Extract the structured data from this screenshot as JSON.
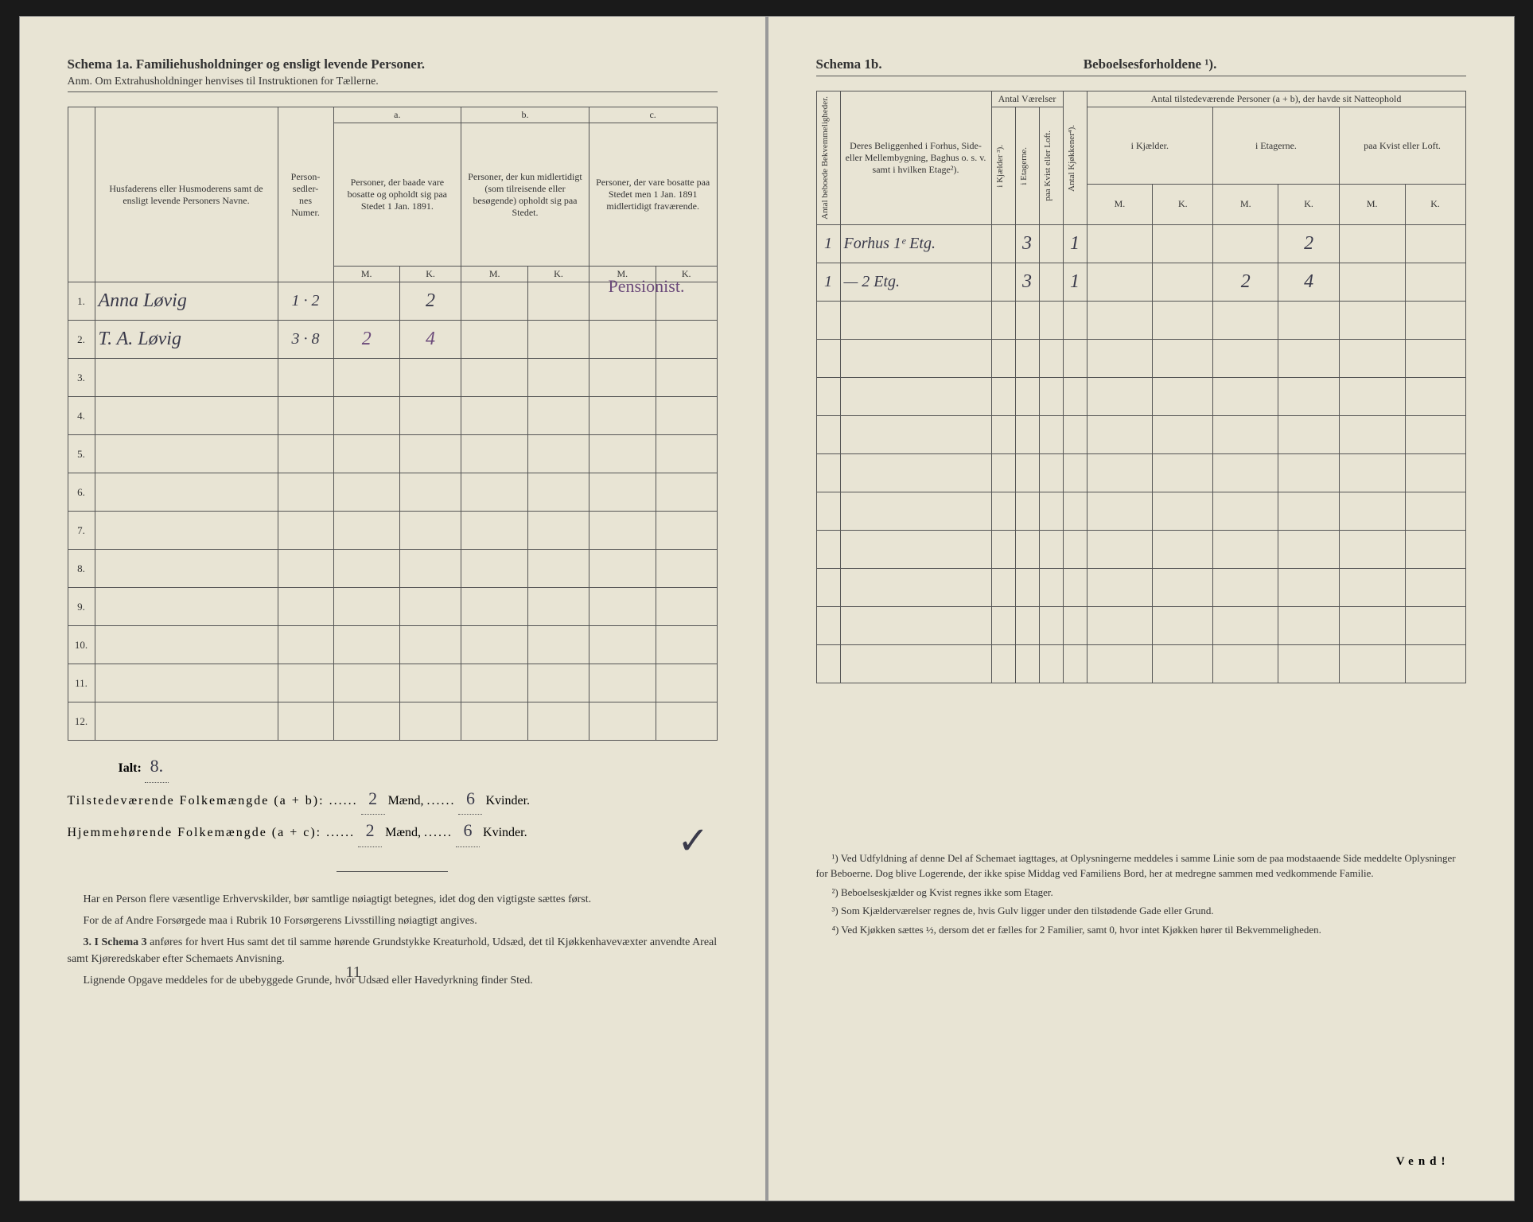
{
  "left": {
    "title": "Schema 1a.  Familiehusholdninger og ensligt levende Personer.",
    "subtitle": "Anm. Om Extrahusholdninger henvises til Instruktionen for Tællerne.",
    "headers": {
      "name": "Husfaderens eller Husmoderens samt de ensligt levende Personers Navne.",
      "personsedler": "Person-\nsedler-\nnes\nNumer.",
      "a_label": "a.",
      "a_text": "Personer, der baade vare bosatte og opholdt sig paa Stedet 1 Jan. 1891.",
      "b_label": "b.",
      "b_text": "Personer, der kun midlertidigt (som tilreisende eller besøgende) opholdt sig paa Stedet.",
      "c_label": "c.",
      "c_text": "Personer, der vare bosatte paa Stedet men 1 Jan. 1891 midlertidigt fraværende.",
      "m": "M.",
      "k": "K."
    },
    "rows": [
      {
        "n": "1.",
        "name": "Anna Løvig",
        "sedler": "1 · 2",
        "aM": "",
        "aK": "2",
        "bM": "",
        "bK": "",
        "cM": "",
        "cK": "",
        "note": "Pensionist."
      },
      {
        "n": "2.",
        "name": "T. A. Løvig",
        "sedler": "3 · 8",
        "aM": "2",
        "aK": "4",
        "bM": "",
        "bK": "",
        "cM": "",
        "cK": "",
        "note": ""
      },
      {
        "n": "3.",
        "name": "",
        "sedler": "",
        "aM": "",
        "aK": "",
        "bM": "",
        "bK": "",
        "cM": "",
        "cK": "",
        "note": ""
      },
      {
        "n": "4.",
        "name": "",
        "sedler": "",
        "aM": "",
        "aK": "",
        "bM": "",
        "bK": "",
        "cM": "",
        "cK": "",
        "note": ""
      },
      {
        "n": "5.",
        "name": "",
        "sedler": "",
        "aM": "",
        "aK": "",
        "bM": "",
        "bK": "",
        "cM": "",
        "cK": "",
        "note": ""
      },
      {
        "n": "6.",
        "name": "",
        "sedler": "",
        "aM": "",
        "aK": "",
        "bM": "",
        "bK": "",
        "cM": "",
        "cK": "",
        "note": ""
      },
      {
        "n": "7.",
        "name": "",
        "sedler": "",
        "aM": "",
        "aK": "",
        "bM": "",
        "bK": "",
        "cM": "",
        "cK": "",
        "note": ""
      },
      {
        "n": "8.",
        "name": "",
        "sedler": "",
        "aM": "",
        "aK": "",
        "bM": "",
        "bK": "",
        "cM": "",
        "cK": "",
        "note": ""
      },
      {
        "n": "9.",
        "name": "",
        "sedler": "",
        "aM": "",
        "aK": "",
        "bM": "",
        "bK": "",
        "cM": "",
        "cK": "",
        "note": ""
      },
      {
        "n": "10.",
        "name": "",
        "sedler": "",
        "aM": "",
        "aK": "",
        "bM": "",
        "bK": "",
        "cM": "",
        "cK": "",
        "note": ""
      },
      {
        "n": "11.",
        "name": "",
        "sedler": "",
        "aM": "",
        "aK": "",
        "bM": "",
        "bK": "",
        "cM": "",
        "cK": "",
        "note": ""
      },
      {
        "n": "12.",
        "name": "",
        "sedler": "",
        "aM": "",
        "aK": "",
        "bM": "",
        "bK": "",
        "cM": "",
        "cK": "",
        "note": ""
      }
    ],
    "summary": {
      "ialt_label": "Ialt:",
      "ialt_val": "8.",
      "line1_a": "Tilstedeværende Folkemængde (a + b): ",
      "line1_m": "2",
      "line1_mid": " Mænd, ",
      "line1_k": "6",
      "line1_end": " Kvinder.",
      "line2_a": "Hjemmehørende Folkemængde (a + c): ",
      "line2_m": "2",
      "line2_mid": " Mænd, ",
      "line2_k": "6",
      "line2_end": " Kvinder."
    },
    "body": {
      "p1": "Har en Person flere væsentlige Erhvervskilder, bør samtlige nøiagtigt betegnes, idet dog den vigtigste sættes først.",
      "p2": "For de af Andre Forsørgede maa i Rubrik 10 Forsørgerens Livsstilling nøiagtigt angives.",
      "p3_lead": "3. I Schema 3",
      "p3": " anføres for hvert Hus samt det til samme hørende Grundstykke Kreaturhold, Udsæd, det til Kjøkkenhavevæxter anvendte Areal samt Kjøreredskaber efter Schemaets Anvisning.",
      "p4": "Lignende Opgave meddeles for de ubebyggede Grunde, hvor Udsæd eller Havedyrkning finder Sted."
    },
    "annotation_11": "11"
  },
  "right": {
    "title_a": "Schema 1b.",
    "title_b": "Beboelsesforholdene ¹).",
    "headers": {
      "antal_bekv": "Antal beboede Bekvemmeligheder.",
      "beliggenhed": "Deres Beliggenhed i Forhus, Side- eller Mellembygning, Baghus o. s. v. samt i hvilken Etage²).",
      "antal_vaer": "Antal Værelser",
      "kjaelder": "i Kjælder ³).",
      "etagerne": "i Etagerne.",
      "kvist": "paa Kvist eller Loft.",
      "kjokken": "Antal Kjøkkener⁴).",
      "antal_pers": "Antal tilstedeværende Personer (a + b), der havde sit Natteophold",
      "ikjael": "i Kjælder.",
      "ietag": "i Etagerne.",
      "pkvist": "paa Kvist eller Loft.",
      "m": "M.",
      "k": "K."
    },
    "rows": [
      {
        "bekv": "1",
        "belig": "Forhus 1ᵉ Etg.",
        "kj": "",
        "et": "3",
        "kv": "",
        "kjok": "1",
        "nkjM": "",
        "nkjK": "",
        "netM": "",
        "netK": "2",
        "nkvM": "",
        "nkvK": ""
      },
      {
        "bekv": "1",
        "belig": "—   2 Etg.",
        "kj": "",
        "et": "3",
        "kv": "",
        "kjok": "1",
        "nkjM": "",
        "nkjK": "",
        "netM": "2",
        "netK": "4",
        "nkvM": "",
        "nkvK": ""
      },
      {
        "bekv": "",
        "belig": "",
        "kj": "",
        "et": "",
        "kv": "",
        "kjok": "",
        "nkjM": "",
        "nkjK": "",
        "netM": "",
        "netK": "",
        "nkvM": "",
        "nkvK": ""
      },
      {
        "bekv": "",
        "belig": "",
        "kj": "",
        "et": "",
        "kv": "",
        "kjok": "",
        "nkjM": "",
        "nkjK": "",
        "netM": "",
        "netK": "",
        "nkvM": "",
        "nkvK": ""
      },
      {
        "bekv": "",
        "belig": "",
        "kj": "",
        "et": "",
        "kv": "",
        "kjok": "",
        "nkjM": "",
        "nkjK": "",
        "netM": "",
        "netK": "",
        "nkvM": "",
        "nkvK": ""
      },
      {
        "bekv": "",
        "belig": "",
        "kj": "",
        "et": "",
        "kv": "",
        "kjok": "",
        "nkjM": "",
        "nkjK": "",
        "netM": "",
        "netK": "",
        "nkvM": "",
        "nkvK": ""
      },
      {
        "bekv": "",
        "belig": "",
        "kj": "",
        "et": "",
        "kv": "",
        "kjok": "",
        "nkjM": "",
        "nkjK": "",
        "netM": "",
        "netK": "",
        "nkvM": "",
        "nkvK": ""
      },
      {
        "bekv": "",
        "belig": "",
        "kj": "",
        "et": "",
        "kv": "",
        "kjok": "",
        "nkjM": "",
        "nkjK": "",
        "netM": "",
        "netK": "",
        "nkvM": "",
        "nkvK": ""
      },
      {
        "bekv": "",
        "belig": "",
        "kj": "",
        "et": "",
        "kv": "",
        "kjok": "",
        "nkjM": "",
        "nkjK": "",
        "netM": "",
        "netK": "",
        "nkvM": "",
        "nkvK": ""
      },
      {
        "bekv": "",
        "belig": "",
        "kj": "",
        "et": "",
        "kv": "",
        "kjok": "",
        "nkjM": "",
        "nkjK": "",
        "netM": "",
        "netK": "",
        "nkvM": "",
        "nkvK": ""
      },
      {
        "bekv": "",
        "belig": "",
        "kj": "",
        "et": "",
        "kv": "",
        "kjok": "",
        "nkjM": "",
        "nkjK": "",
        "netM": "",
        "netK": "",
        "nkvM": "",
        "nkvK": ""
      },
      {
        "bekv": "",
        "belig": "",
        "kj": "",
        "et": "",
        "kv": "",
        "kjok": "",
        "nkjM": "",
        "nkjK": "",
        "netM": "",
        "netK": "",
        "nkvM": "",
        "nkvK": ""
      }
    ],
    "footnotes": {
      "f1": "¹) Ved Udfyldning af denne Del af Schemaet iagttages, at Oplysningerne meddeles i samme Linie som de paa modstaaende Side meddelte Oplysninger for Beboerne. Dog blive Logerende, der ikke spise Middag ved Familiens Bord, her at medregne sammen med vedkommende Familie.",
      "f2": "²) Beboelseskjælder og Kvist regnes ikke som Etager.",
      "f3": "³) Som Kjælderværelser regnes de, hvis Gulv ligger under den tilstødende Gade eller Grund.",
      "f4": "⁴) Ved Kjøkken sættes ½, dersom det er fælles for 2 Familier, samt 0, hvor intet Kjøkken hører til Bekvemmeligheden."
    },
    "vend": "Vend!"
  },
  "colors": {
    "paper": "#e8e4d4",
    "ink": "#333333",
    "rule": "#555555",
    "handwriting": "#3a3a4a",
    "handwriting_purple": "#6b4a7a"
  }
}
